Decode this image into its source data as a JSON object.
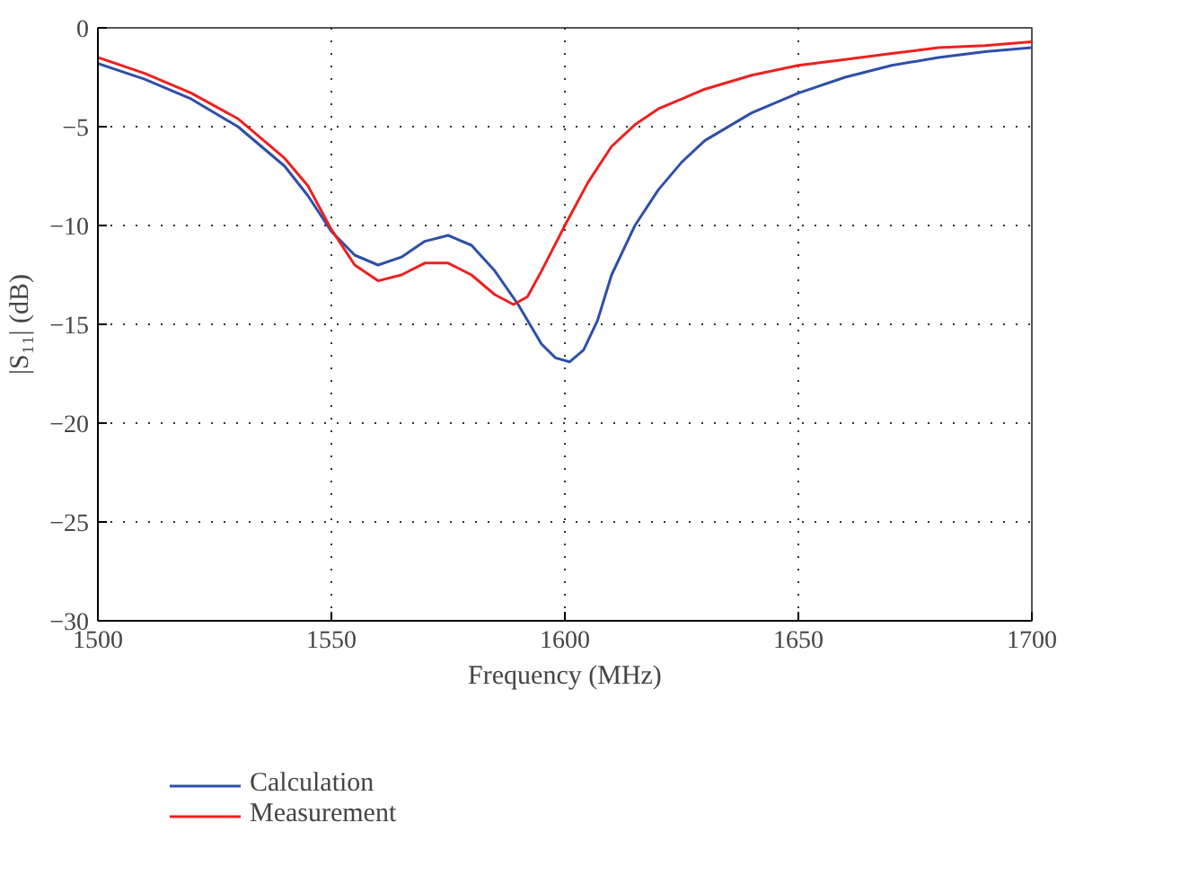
{
  "chart_data": {
    "type": "line",
    "xlabel": "Frequency (MHz)",
    "ylabel": "|S₁₁| (dB)",
    "xlim": [
      1500,
      1700
    ],
    "xticks": [
      1500,
      1550,
      1600,
      1650,
      1700
    ],
    "ylim": [
      -30,
      0
    ],
    "yticks": [
      -30,
      -25,
      -20,
      -15,
      -10,
      -5,
      0
    ],
    "grid": true,
    "legend": "bottom left",
    "marker": "none",
    "line_style": "solid",
    "series": [
      {
        "name": "Calculation",
        "color": "#2e4fa8",
        "x": [
          1500,
          1510,
          1520,
          1530,
          1540,
          1545,
          1550,
          1555,
          1560,
          1565,
          1570,
          1575,
          1580,
          1585,
          1590,
          1595,
          1598,
          1601,
          1604,
          1607,
          1610,
          1615,
          1620,
          1625,
          1630,
          1640,
          1650,
          1660,
          1670,
          1680,
          1690,
          1700
        ],
        "values": [
          -1.8,
          -2.6,
          -3.6,
          -5.0,
          -7.0,
          -8.5,
          -10.3,
          -11.5,
          -12.0,
          -11.6,
          -10.8,
          -10.5,
          -11.0,
          -12.3,
          -14.0,
          -16.0,
          -16.7,
          -16.9,
          -16.3,
          -14.8,
          -12.5,
          -10.0,
          -8.2,
          -6.8,
          -5.7,
          -4.3,
          -3.3,
          -2.5,
          -1.9,
          -1.5,
          -1.2,
          -1.0
        ]
      },
      {
        "name": "Measurement",
        "color": "#ee2020",
        "x": [
          1500,
          1510,
          1520,
          1530,
          1540,
          1545,
          1550,
          1555,
          1560,
          1565,
          1570,
          1575,
          1580,
          1585,
          1589,
          1592,
          1595,
          1600,
          1605,
          1610,
          1615,
          1620,
          1630,
          1640,
          1650,
          1660,
          1670,
          1680,
          1690,
          1700
        ],
        "values": [
          -1.5,
          -2.3,
          -3.3,
          -4.6,
          -6.6,
          -8.0,
          -10.2,
          -12.0,
          -12.8,
          -12.5,
          -11.9,
          -11.9,
          -12.5,
          -13.5,
          -14.0,
          -13.6,
          -12.3,
          -10.0,
          -7.8,
          -6.0,
          -4.9,
          -4.1,
          -3.1,
          -2.4,
          -1.9,
          -1.6,
          -1.3,
          -1.0,
          -0.9,
          -0.7
        ]
      }
    ]
  }
}
